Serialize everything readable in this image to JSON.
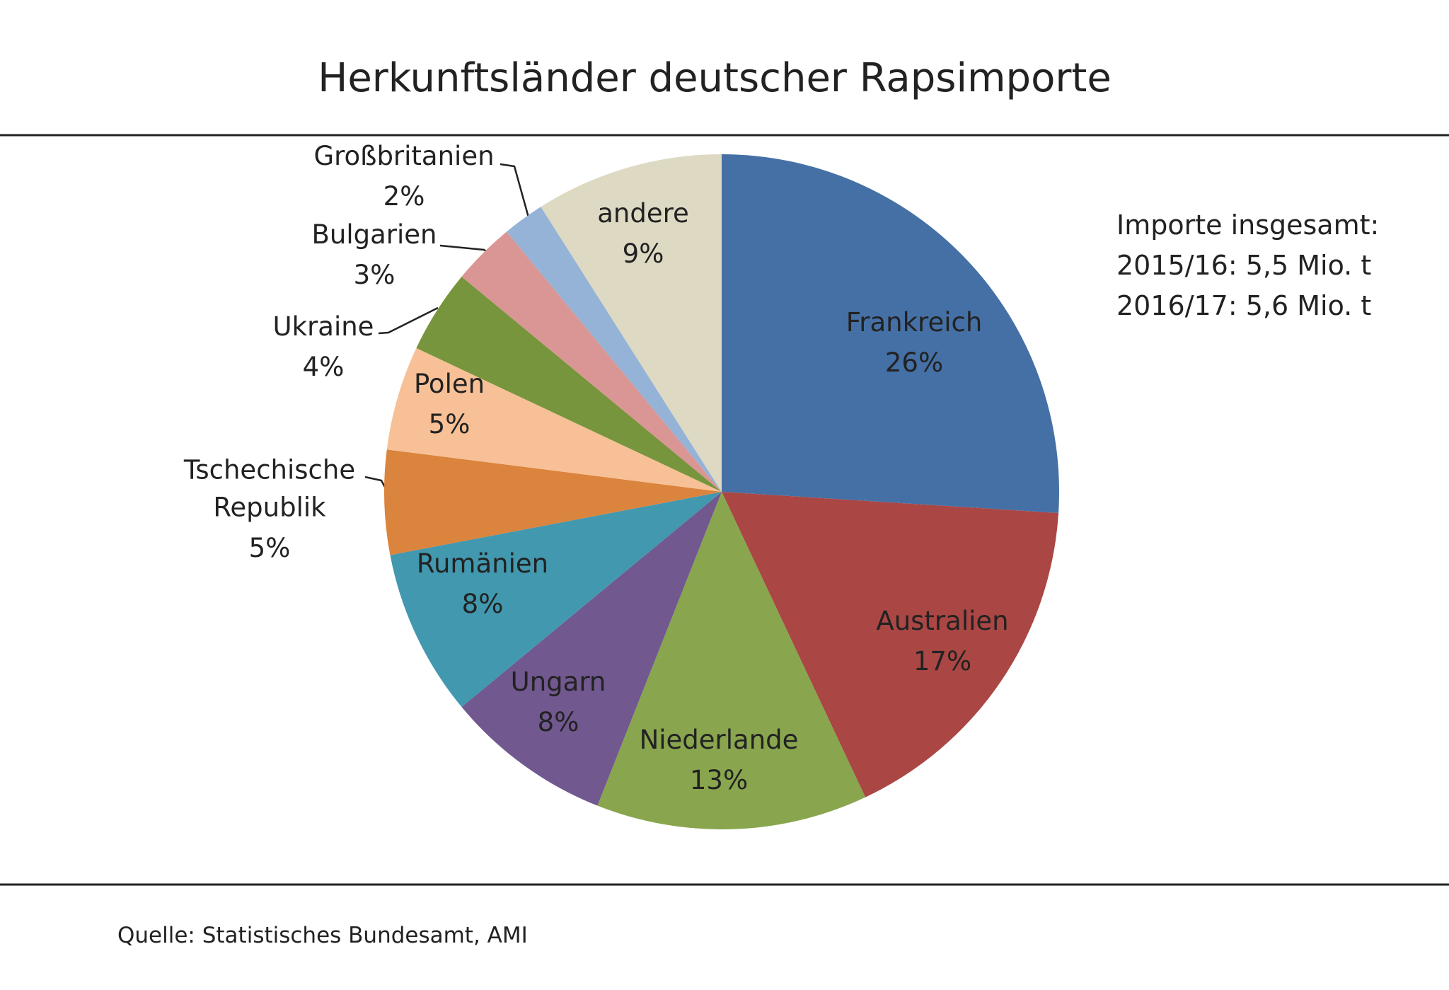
{
  "chart_data": {
    "type": "pie",
    "title": "Herkunftsländer deutscher Rapsimporte",
    "categories": [
      "Frankreich",
      "Australien",
      "Niederlande",
      "Ungarn",
      "Rumänien",
      "Tschechische Republik",
      "Polen",
      "Ukraine",
      "Bulgarien",
      "Großbritanien",
      "andere"
    ],
    "values": [
      26,
      17,
      13,
      8,
      8,
      5,
      5,
      4,
      3,
      2,
      9
    ],
    "value_labels": [
      "26%",
      "17%",
      "13%",
      "8%",
      "8%",
      "5%",
      "5%",
      "4%",
      "3%",
      "2%",
      "9%"
    ],
    "colors": [
      "#4570a6",
      "#aa4644",
      "#89a54e",
      "#71588f",
      "#4298af",
      "#db843d",
      "#f8c096",
      "#77953c",
      "#d99694",
      "#95b3d7",
      "#ddd9c3"
    ],
    "annotation": [
      "Importe insgesamt:",
      "2015/16: 5,5 Mio. t",
      "2016/17: 5,6 Mio. t"
    ],
    "source": "Quelle: Statistisches Bundesamt, AMI"
  }
}
